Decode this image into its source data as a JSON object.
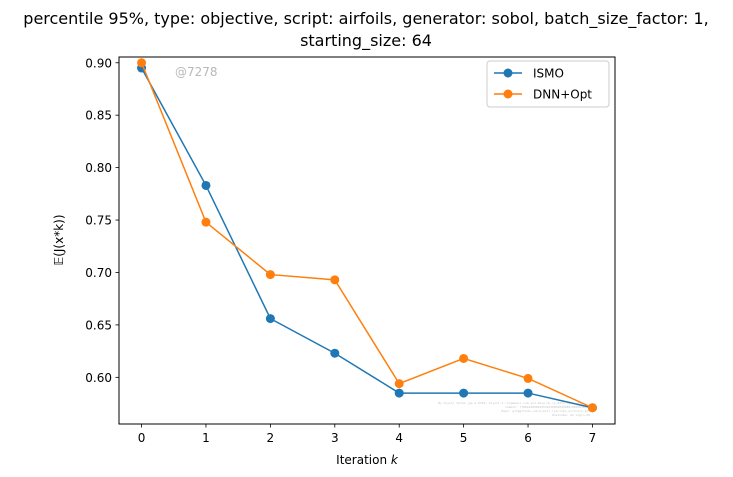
{
  "chart_data": {
    "type": "line",
    "title_lines": [
      "percentile 95%, type: objective, script: airfoils, generator: sobol, batch_size_factor: 1,",
      "starting_size: 64"
    ],
    "xlabel": "Iteration k",
    "xlabel_prefix": "Iteration ",
    "xlabel_var": "k",
    "ylabel": "𝔼(J(x*k))",
    "x": [
      0,
      1,
      2,
      3,
      4,
      5,
      6,
      7
    ],
    "x_ticks": [
      0,
      1,
      2,
      3,
      4,
      5,
      6,
      7
    ],
    "y_ticks": [
      0.6,
      0.65,
      0.7,
      0.75,
      0.8,
      0.85,
      0.9
    ],
    "y_tick_labels": [
      "0.60",
      "0.65",
      "0.70",
      "0.75",
      "0.80",
      "0.85",
      "0.90"
    ],
    "xlim": [
      -0.35,
      7.35
    ],
    "ylim": [
      0.5555,
      0.9055
    ],
    "series": [
      {
        "name": "ISMO",
        "color": "#1f77b4",
        "values": [
          0.895,
          0.783,
          0.656,
          0.623,
          0.585,
          0.585,
          0.585,
          0.571
        ]
      },
      {
        "name": "DNN+Opt",
        "color": "#ff7f0e",
        "values": [
          0.9,
          0.748,
          0.698,
          0.693,
          0.594,
          0.618,
          0.599,
          0.571
        ]
      }
    ],
    "legend_position": "top-right",
    "grid": false,
    "watermark": "@7278",
    "fine_print": [
      "By Kiyoti Shima (ge-4-0794) Kiyoti.4.(s)@email.com and Deng Hu (s-8371-(8) - 2+) ...",
      "Commit: 7f86e42890499532d300340d0038c0036036e7f",
      "Repo: git@github.com:kjetil-lye/ismo_airfoils.git",
      "Hostname: ms-login-04"
    ]
  }
}
